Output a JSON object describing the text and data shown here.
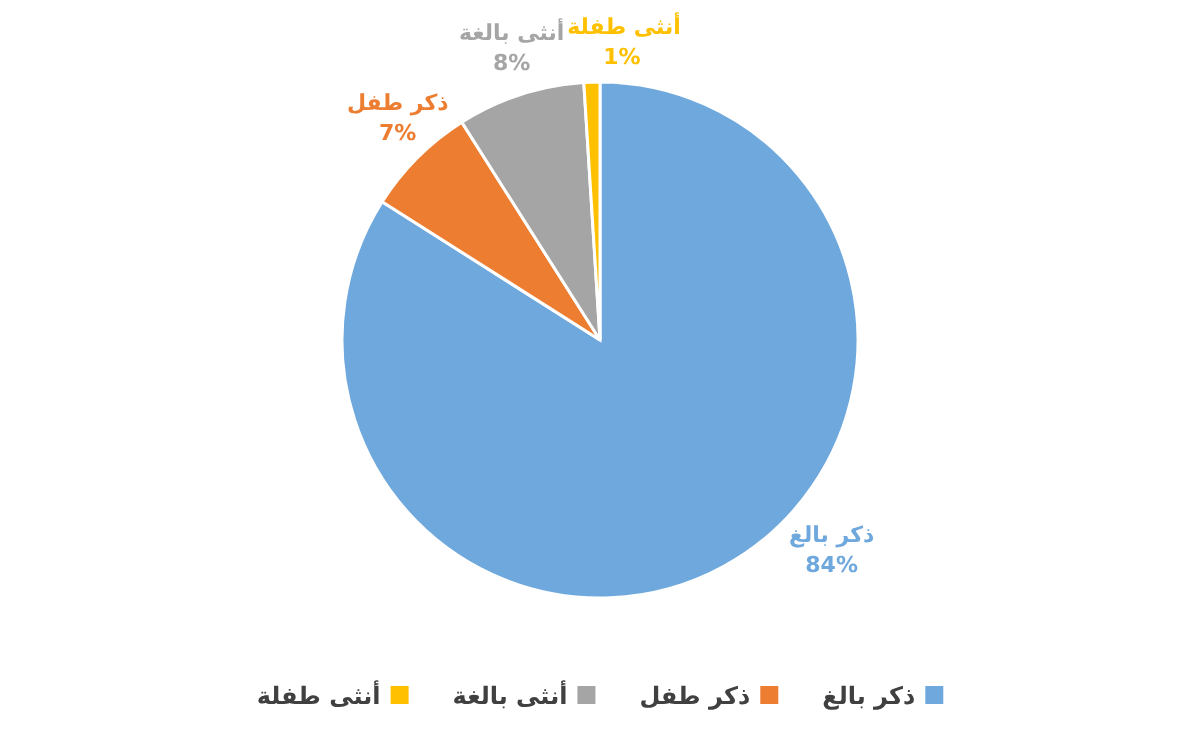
{
  "chart_data": {
    "type": "pie",
    "categories": [
      "ذكر بالغ",
      "ذكر طفل",
      "أنثى بالغة",
      "أنثى طفلة"
    ],
    "values": [
      84,
      7,
      8,
      1
    ],
    "colors": [
      "#6fa8dc",
      "#ed7d31",
      "#a5a5a5",
      "#ffc000"
    ],
    "value_labels": [
      "84%",
      "7%",
      "8%",
      "1%"
    ],
    "legend": "bottom"
  }
}
